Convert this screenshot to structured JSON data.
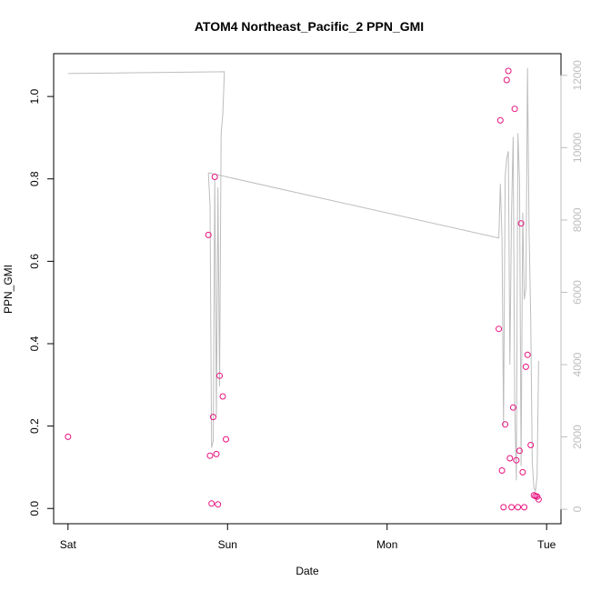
{
  "chart_data": {
    "type": "scatter",
    "title": "ATOM4 Northeast_Pacific_2 PPN_GMI",
    "xlabel": "Date",
    "ylabel": "PPN_GMI",
    "x_ticks": [
      "Sat",
      "Sun",
      "Mon",
      "Tue"
    ],
    "x_unit": "days since Saturday 00:00",
    "xlim": [
      -0.09,
      3.09
    ],
    "ylim": [
      -0.037,
      1.104
    ],
    "y_ticks": [
      0.0,
      0.2,
      0.4,
      0.6,
      0.8,
      1.0
    ],
    "y2_ticks": [
      0,
      2000,
      4000,
      6000,
      8000,
      10000,
      12000
    ],
    "y2lim": [
      -400,
      12600
    ],
    "legend": "none",
    "grid": false,
    "colors": {
      "points": "#e8127f",
      "line": "#bdbdbd",
      "axis": "#000000",
      "right_axis": "#bdbdbd"
    },
    "points": [
      {
        "x": 0.0,
        "y": 0.174
      },
      {
        "x": 0.88,
        "y": 0.664
      },
      {
        "x": 0.89,
        "y": 0.128
      },
      {
        "x": 0.9,
        "y": 0.012
      },
      {
        "x": 0.91,
        "y": 0.222
      },
      {
        "x": 0.92,
        "y": 0.805
      },
      {
        "x": 0.93,
        "y": 0.132
      },
      {
        "x": 0.94,
        "y": 0.01
      },
      {
        "x": 0.95,
        "y": 0.322
      },
      {
        "x": 0.97,
        "y": 0.272
      },
      {
        "x": 0.99,
        "y": 0.168
      },
      {
        "x": 2.7,
        "y": 0.436
      },
      {
        "x": 2.71,
        "y": 0.942
      },
      {
        "x": 2.72,
        "y": 0.092
      },
      {
        "x": 2.73,
        "y": 0.003
      },
      {
        "x": 2.74,
        "y": 0.204
      },
      {
        "x": 2.75,
        "y": 1.04
      },
      {
        "x": 2.76,
        "y": 1.062
      },
      {
        "x": 2.77,
        "y": 0.122
      },
      {
        "x": 2.78,
        "y": 0.003
      },
      {
        "x": 2.79,
        "y": 0.245
      },
      {
        "x": 2.8,
        "y": 0.97
      },
      {
        "x": 2.81,
        "y": 0.117
      },
      {
        "x": 2.82,
        "y": 0.003
      },
      {
        "x": 2.83,
        "y": 0.14
      },
      {
        "x": 2.84,
        "y": 0.692
      },
      {
        "x": 2.85,
        "y": 0.088
      },
      {
        "x": 2.86,
        "y": 0.003
      },
      {
        "x": 2.87,
        "y": 0.344
      },
      {
        "x": 2.88,
        "y": 0.373
      },
      {
        "x": 2.9,
        "y": 0.154
      },
      {
        "x": 2.92,
        "y": 0.032
      },
      {
        "x": 2.93,
        "y": 0.03
      },
      {
        "x": 2.94,
        "y": 0.029
      },
      {
        "x": 2.95,
        "y": 0.022
      }
    ],
    "line": [
      [
        0.0,
        12050
      ],
      [
        0.98,
        12100
      ],
      [
        0.97,
        10900
      ],
      [
        0.96,
        10400
      ],
      [
        0.95,
        3400
      ],
      [
        0.94,
        8900
      ],
      [
        0.93,
        2600
      ],
      [
        0.92,
        9100
      ],
      [
        0.91,
        1900
      ],
      [
        0.9,
        1700
      ],
      [
        0.89,
        8400
      ],
      [
        0.88,
        9300
      ],
      [
        0.885,
        9300
      ],
      [
        2.7,
        7500
      ],
      [
        2.71,
        9000
      ],
      [
        2.72,
        7500
      ],
      [
        2.73,
        2300
      ],
      [
        2.74,
        9200
      ],
      [
        2.75,
        9700
      ],
      [
        2.76,
        9900
      ],
      [
        2.77,
        4000
      ],
      [
        2.78,
        8200
      ],
      [
        2.79,
        10300
      ],
      [
        2.8,
        2900
      ],
      [
        2.81,
        800
      ],
      [
        2.82,
        10400
      ],
      [
        2.83,
        9100
      ],
      [
        2.84,
        1200
      ],
      [
        2.85,
        8200
      ],
      [
        2.86,
        5800
      ],
      [
        2.87,
        6100
      ],
      [
        2.88,
        12200
      ],
      [
        2.89,
        7700
      ],
      [
        2.9,
        5300
      ],
      [
        2.91,
        1300
      ],
      [
        2.92,
        600
      ],
      [
        2.93,
        500
      ],
      [
        2.94,
        900
      ],
      [
        2.95,
        4100
      ]
    ]
  }
}
